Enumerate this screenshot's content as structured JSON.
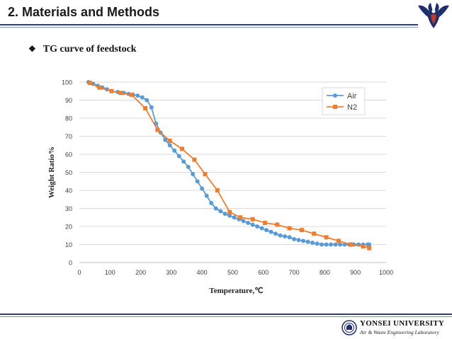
{
  "slide": {
    "title": "2. Materials and Methods",
    "bullet_symbol": "❖",
    "bullet_text": "TG curve of feedstock"
  },
  "footer": {
    "university": "YONSEI UNIVERSITY",
    "lab": "Air & Waste Engineering Laboratory"
  },
  "colors": {
    "air": "#5b9bd5",
    "n2": "#ed7d31",
    "gridline": "#d9d9d9",
    "axis_text": "#404040",
    "accent": "#2b3f7a"
  },
  "chart_data": {
    "type": "line",
    "xlabel": "Temperature,℃",
    "ylabel": "Weight Ratio%",
    "xlim": [
      0,
      1000
    ],
    "ylim": [
      0,
      100
    ],
    "x_ticks": [
      0,
      100,
      200,
      300,
      400,
      500,
      600,
      700,
      800,
      900,
      1000
    ],
    "y_ticks": [
      0,
      10,
      20,
      30,
      40,
      50,
      60,
      70,
      80,
      90,
      100
    ],
    "grid": "horizontal",
    "legend_position": "top-right",
    "series": [
      {
        "name": "Air",
        "marker": "circle",
        "x": [
          30,
          45,
          60,
          75,
          90,
          105,
          125,
          145,
          160,
          175,
          190,
          205,
          220,
          235,
          250,
          265,
          280,
          295,
          310,
          325,
          340,
          355,
          370,
          385,
          400,
          415,
          430,
          445,
          460,
          475,
          490,
          505,
          520,
          535,
          550,
          565,
          580,
          595,
          610,
          625,
          640,
          655,
          670,
          685,
          700,
          715,
          730,
          745,
          760,
          775,
          790,
          805,
          820,
          835,
          850,
          865,
          880,
          895,
          910,
          925,
          940,
          945
        ],
        "y": [
          100,
          99,
          98,
          97,
          96,
          95,
          94.5,
          94,
          93.5,
          93,
          92.5,
          91.5,
          90,
          86,
          77,
          72,
          68,
          65,
          62,
          59,
          56,
          53,
          49,
          45,
          41,
          37,
          33,
          30,
          28.5,
          27,
          26,
          25,
          24,
          23,
          22,
          21,
          20,
          19,
          18,
          17,
          16,
          15,
          14.5,
          14,
          13,
          12.5,
          12,
          11.5,
          11,
          10.5,
          10,
          10,
          10,
          10,
          10,
          10,
          10,
          10,
          10,
          10,
          10,
          10
        ]
      },
      {
        "name": "N2",
        "marker": "square",
        "x": [
          35,
          65,
          105,
          135,
          170,
          215,
          255,
          295,
          335,
          375,
          410,
          450,
          490,
          525,
          565,
          605,
          645,
          685,
          725,
          765,
          805,
          845,
          885,
          925,
          945
        ],
        "y": [
          99.5,
          97,
          95,
          94,
          93,
          85.5,
          73.5,
          67.5,
          63,
          57,
          49,
          40,
          28,
          25,
          24,
          22,
          21,
          19,
          18,
          16,
          14,
          12,
          10,
          9,
          8
        ]
      }
    ]
  }
}
